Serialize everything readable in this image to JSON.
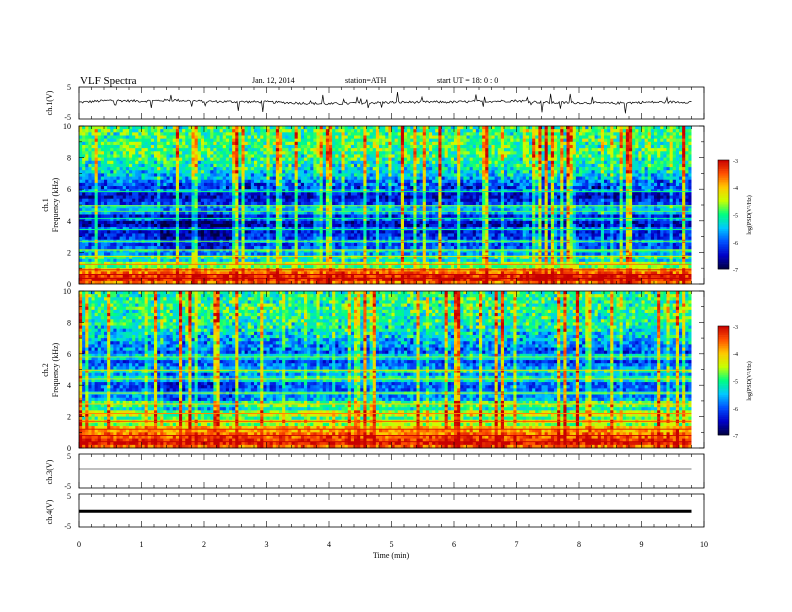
{
  "header": {
    "title": "VLF  Spectra",
    "date": "Jan. 12, 2014",
    "station": "station=ATH",
    "start": "start  UT  =    18: 0  : 0"
  },
  "colors": {
    "background": "#ffffff",
    "axes": "#000000",
    "trace": "#000000",
    "colormap": [
      "#000040",
      "#0000c8",
      "#0050ff",
      "#00c8ff",
      "#00ff80",
      "#c8ff00",
      "#ffc800",
      "#ff5000",
      "#c80000",
      "#ffffff"
    ]
  },
  "chart_data": [
    {
      "type": "line",
      "panel": "ch1-waveform",
      "ylabel": "ch.1(V)",
      "ylim": [
        -5,
        5
      ],
      "yticks": [
        "5",
        "-5"
      ],
      "xlim": [
        0,
        10
      ],
      "x": [
        0,
        0.5,
        1,
        1.5,
        2,
        2.5,
        3,
        3.5,
        4,
        4.5,
        5,
        5.5,
        6,
        6.5,
        7,
        7.5,
        8,
        8.5,
        9,
        9.5,
        9.8
      ],
      "values": [
        0.2,
        0.8,
        0.6,
        0.9,
        0.5,
        0.4,
        0.3,
        0.0,
        -0.3,
        0.0,
        0.2,
        0.3,
        0.3,
        0.5,
        0.7,
        0.1,
        0.1,
        -0.1,
        0.2,
        0.3,
        0.3
      ]
    },
    {
      "type": "heatmap",
      "panel": "ch1-spectrogram",
      "ylabel": "ch.1",
      "ylabel2": "Frequency  (kHz)",
      "yticks": [
        "0",
        "2",
        "4",
        "6",
        "8",
        "10"
      ],
      "ylim": [
        0,
        10
      ],
      "xlim": [
        0,
        10
      ],
      "data_xmax": 9.8,
      "colorbar": {
        "label": "log(PSD(V²/Hz)",
        "ticks": [
          "-3",
          "-4",
          "-5",
          "-6",
          "-7"
        ],
        "range": [
          -7,
          -3
        ]
      },
      "profile_freq_khz": [
        0,
        0.5,
        1,
        1.5,
        2,
        2.5,
        3,
        3.5,
        4,
        4.5,
        5,
        5.5,
        6,
        6.5,
        7,
        8,
        9,
        10
      ],
      "profile_log_psd": [
        -3.6,
        -3.9,
        -4.7,
        -5.4,
        -5.9,
        -6.1,
        -6.2,
        -6.5,
        -6.5,
        -6.2,
        -6.0,
        -6.5,
        -6.3,
        -5.9,
        -5.4,
        -5.0,
        -4.9,
        -5.0
      ],
      "narrowband_lines_khz": [
        0.35,
        0.6,
        0.9,
        1.25,
        1.75,
        2.15,
        2.7,
        3.45,
        4.15,
        4.6,
        4.95,
        5.85
      ]
    },
    {
      "type": "heatmap",
      "panel": "ch2-spectrogram",
      "ylabel": "ch.2",
      "ylabel2": "Frequency  (kHz)",
      "yticks": [
        "0",
        "2",
        "4",
        "6",
        "8",
        "10"
      ],
      "ylim": [
        0,
        10
      ],
      "xlim": [
        0,
        10
      ],
      "data_xmax": 9.8,
      "colorbar": {
        "label": "log(PSD(V²/Hz)",
        "ticks": [
          "-3",
          "-4",
          "-5",
          "-6",
          "-7"
        ],
        "range": [
          -7,
          -3
        ]
      },
      "profile_freq_khz": [
        0,
        0.5,
        1,
        1.5,
        2,
        2.5,
        3,
        3.5,
        4,
        4.5,
        5,
        5.5,
        6,
        6.5,
        7,
        8,
        9,
        10
      ],
      "profile_log_psd": [
        -3.5,
        -3.9,
        -4.4,
        -4.7,
        -5.0,
        -5.3,
        -5.6,
        -5.9,
        -6.0,
        -5.8,
        -5.6,
        -6.1,
        -6.0,
        -5.8,
        -5.5,
        -5.1,
        -5.0,
        -5.1
      ],
      "narrowband_lines_khz": [
        0.4,
        0.8,
        1.2,
        1.7,
        2.2,
        2.8,
        3.5,
        4.4,
        4.95,
        5.8
      ]
    },
    {
      "type": "line",
      "panel": "ch3-waveform",
      "ylabel": "ch.3(V)",
      "ylim": [
        -5,
        5
      ],
      "yticks": [
        "5",
        "-5"
      ],
      "xlim": [
        0,
        10
      ],
      "x": [
        0,
        9.8
      ],
      "values": [
        0.6,
        0.6
      ]
    },
    {
      "type": "line",
      "panel": "ch4-waveform",
      "ylabel": "ch.4(V)",
      "ylim": [
        -5,
        5
      ],
      "yticks": [
        "5",
        "-5"
      ],
      "xlim": [
        0,
        10
      ],
      "xlabel": "Time  (min)",
      "xticks": [
        "0",
        "1",
        "2",
        "3",
        "4",
        "5",
        "6",
        "7",
        "8",
        "9",
        "10"
      ],
      "x": [
        0,
        9.8
      ],
      "values": [
        -0.2,
        -0.2
      ]
    }
  ]
}
